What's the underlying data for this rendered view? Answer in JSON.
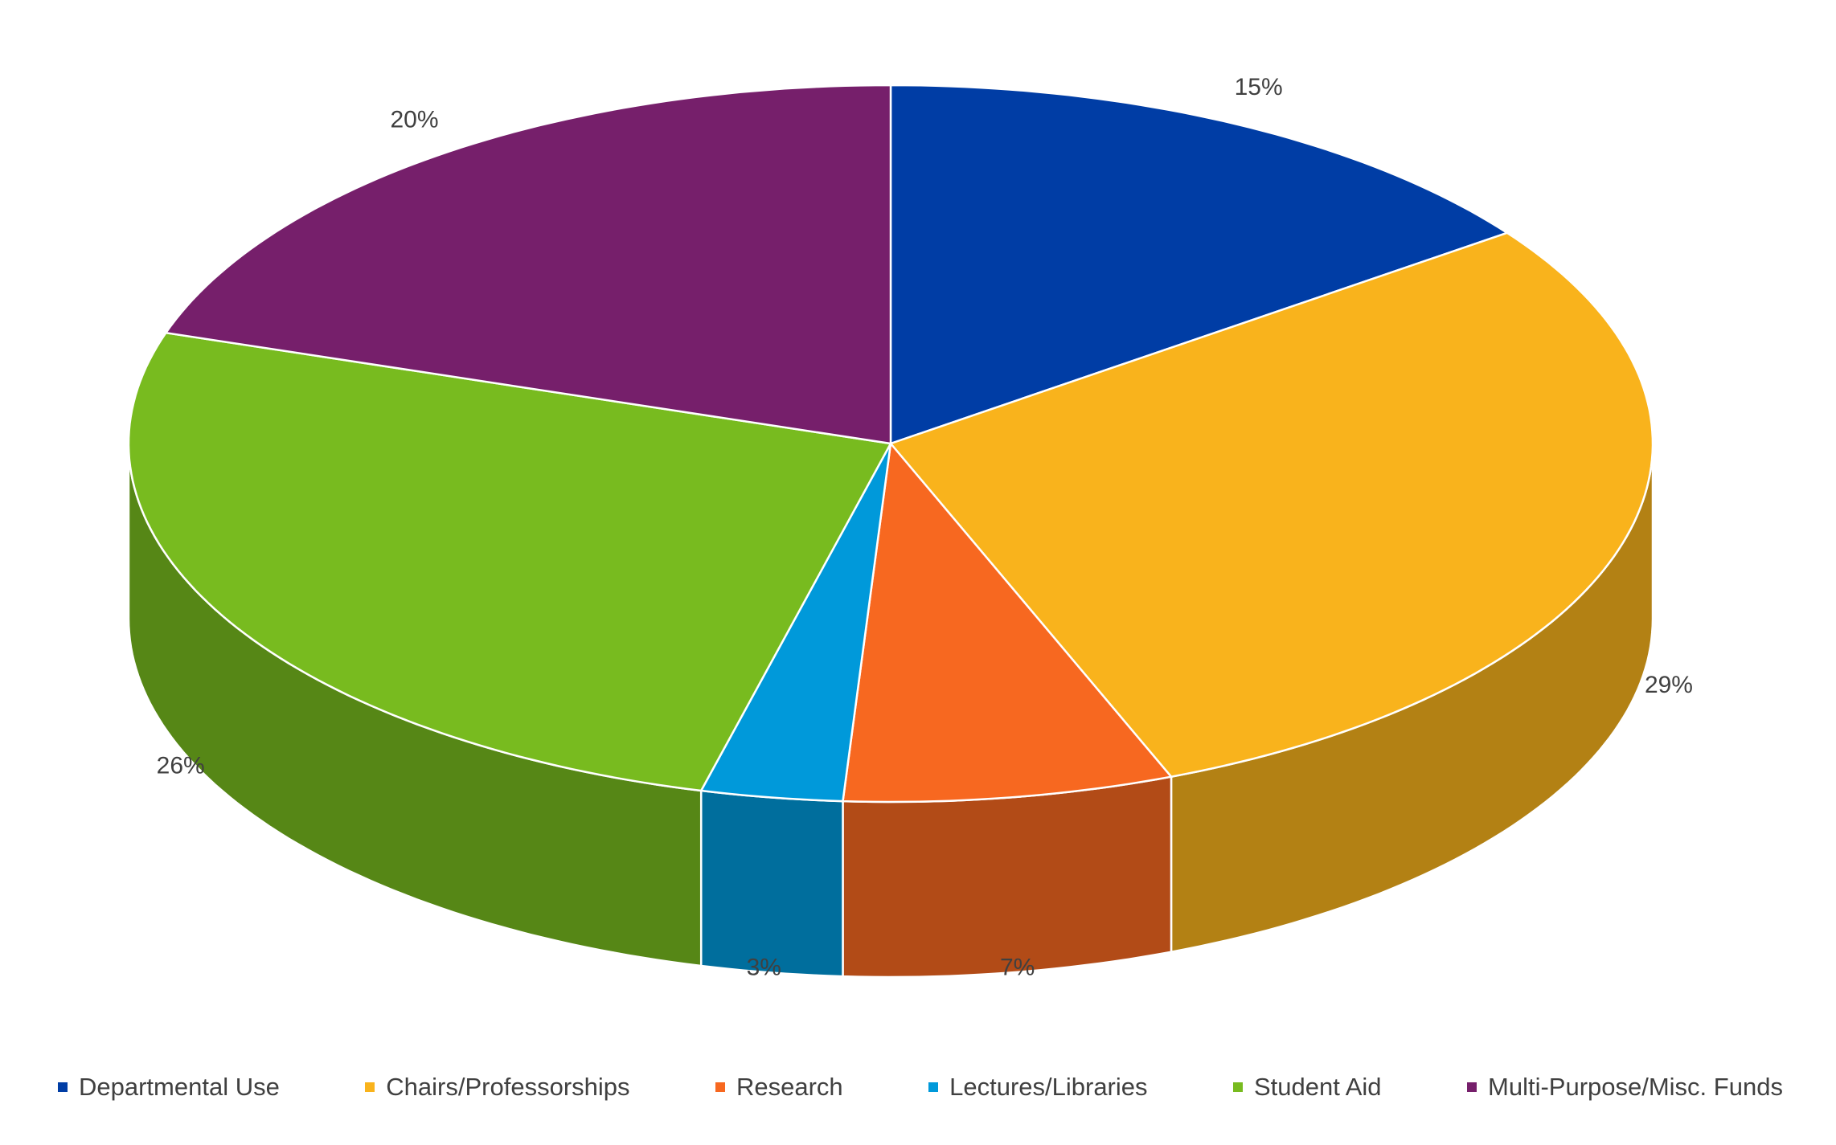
{
  "chart_data": {
    "type": "pie3d",
    "categories": [
      "Departmental Use",
      "Chairs/Professorships",
      "Research",
      "Lectures/Libraries",
      "Student Aid",
      "Multi-Purpose/Misc. Funds"
    ],
    "values": [
      15,
      29,
      7,
      3,
      26,
      20
    ],
    "value_labels": [
      "15%",
      "29%",
      "7%",
      "3%",
      "26%",
      "20%"
    ],
    "colors": [
      "#003da5",
      "#f9b31c",
      "#f76820",
      "#0099da",
      "#78bb1f",
      "#761f6b"
    ],
    "legend": "bottom"
  }
}
